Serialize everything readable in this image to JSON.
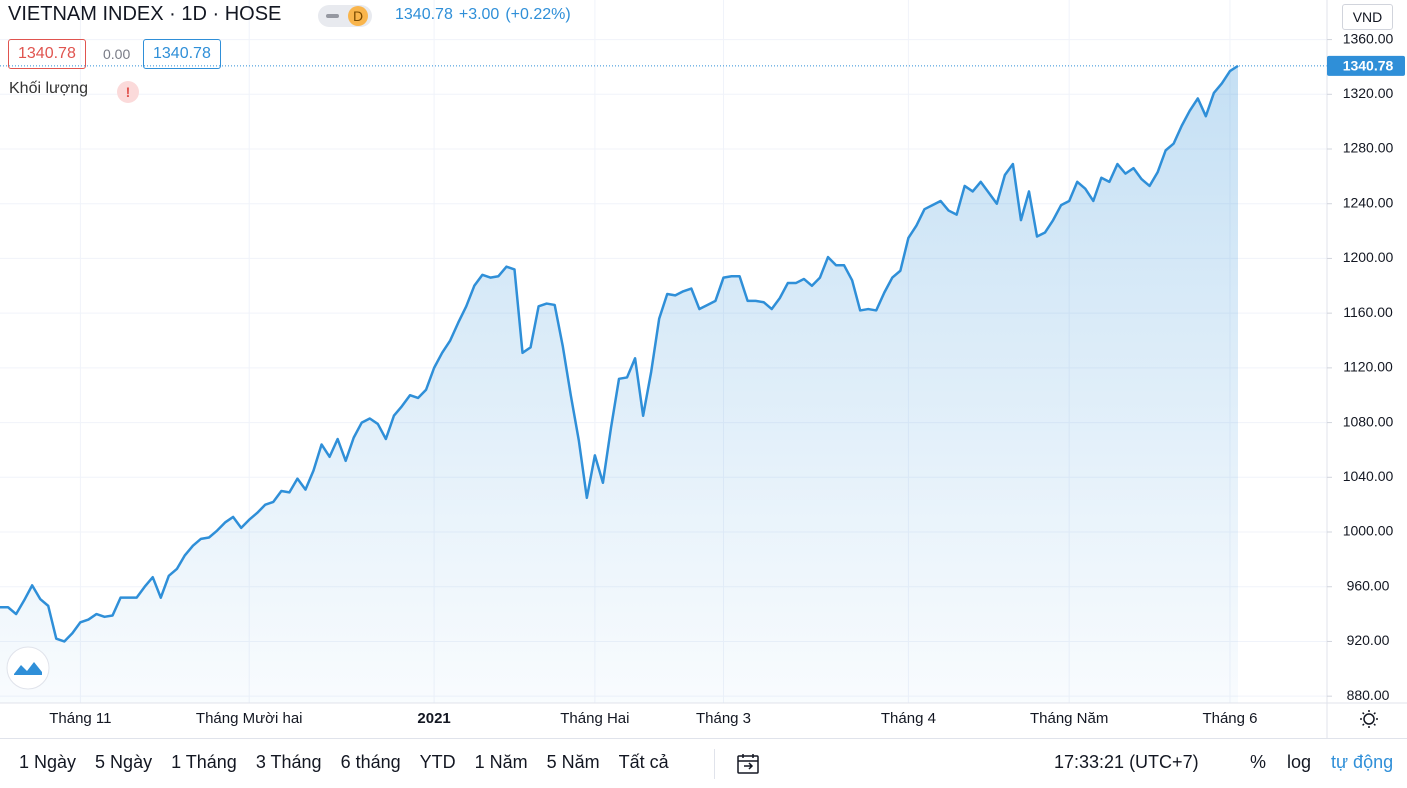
{
  "header": {
    "title": "VIETNAM INDEX · 1D · HOSE",
    "badge": "D",
    "last": "1340.78",
    "change": "+3.00",
    "change_pct": "(+0.22%)",
    "currency": "VND"
  },
  "legend": {
    "open": "1340.78",
    "change": "0.00",
    "close": "1340.78",
    "volume": "Khối lượng",
    "warning": "!"
  },
  "chart_data": {
    "type": "area",
    "color": "#2f8fd8",
    "categories": [
      null,
      null,
      null,
      null,
      null,
      null,
      null,
      null,
      null,
      null,
      "Tháng 11",
      null,
      null,
      null,
      null,
      null,
      null,
      null,
      null,
      null,
      null,
      null,
      null,
      null,
      null,
      null,
      null,
      null,
      null,
      null,
      null,
      "Tháng Mười hai",
      null,
      null,
      null,
      null,
      null,
      null,
      null,
      null,
      null,
      null,
      null,
      null,
      null,
      null,
      null,
      null,
      null,
      null,
      null,
      null,
      null,
      null,
      "2021",
      null,
      null,
      null,
      null,
      null,
      null,
      null,
      null,
      null,
      null,
      null,
      null,
      null,
      null,
      null,
      null,
      null,
      null,
      null,
      "Tháng Hai",
      null,
      null,
      null,
      null,
      null,
      null,
      null,
      null,
      null,
      null,
      null,
      null,
      null,
      null,
      null,
      "Tháng 3",
      null,
      null,
      null,
      null,
      null,
      null,
      null,
      null,
      null,
      null,
      null,
      null,
      null,
      null,
      null,
      null,
      null,
      null,
      null,
      null,
      null,
      null,
      "Tháng 4",
      null,
      null,
      null,
      null,
      null,
      null,
      null,
      null,
      null,
      null,
      null,
      null,
      null,
      null,
      null,
      null,
      null,
      null,
      null,
      "Tháng Năm",
      null,
      null,
      null,
      null,
      null,
      null,
      null,
      null,
      null,
      null,
      null,
      null,
      null,
      null,
      null,
      null,
      null,
      null,
      null,
      "Tháng 6",
      null
    ],
    "values": [
      945,
      945,
      940,
      950,
      961,
      951,
      946,
      922,
      920,
      926,
      934,
      936,
      940,
      938,
      939,
      952,
      952,
      952,
      960,
      967,
      952,
      968,
      973,
      983,
      990,
      995,
      996,
      1001,
      1007,
      1011,
      1003,
      1009,
      1014,
      1020,
      1022,
      1030,
      1029,
      1039,
      1031,
      1045,
      1064,
      1055,
      1068,
      1052,
      1069,
      1080,
      1083,
      1079,
      1068,
      1085,
      1092,
      1100,
      1098,
      1104,
      1120,
      1131,
      1140,
      1153,
      1165,
      1180,
      1188,
      1186,
      1187,
      1194,
      1192,
      1131,
      1135,
      1165,
      1167,
      1166,
      1136,
      1100,
      1067,
      1025,
      1056,
      1036,
      1076,
      1112,
      1113,
      1127,
      1085,
      1117,
      1156,
      1174,
      1173,
      1176,
      1178,
      1163,
      1166,
      1169,
      1186,
      1187,
      1187,
      1169,
      1169,
      1168,
      1163,
      1171,
      1182,
      1182,
      1185,
      1180,
      1186,
      1201,
      1195,
      1195,
      1184,
      1162,
      1163,
      1162,
      1175,
      1186,
      1191,
      1215,
      1224,
      1236,
      1239,
      1242,
      1235,
      1232,
      1253,
      1249,
      1256,
      1248,
      1240,
      1261,
      1269,
      1228,
      1249,
      1216,
      1219,
      1228,
      1239,
      1242,
      1256,
      1251,
      1242,
      1259,
      1256,
      1269,
      1262,
      1266,
      1258,
      1253,
      1263,
      1279,
      1284,
      1297,
      1308,
      1317,
      1304,
      1321,
      1328,
      1337,
      1340.78
    ],
    "ylim": [
      875,
      1367
    ],
    "yticks": [
      {
        "value": 880,
        "label": "880.00"
      },
      {
        "value": 920,
        "label": "920.00"
      },
      {
        "value": 960,
        "label": "960.00"
      },
      {
        "value": 1000,
        "label": "1000.00"
      },
      {
        "value": 1040,
        "label": "1040.00"
      },
      {
        "value": 1080,
        "label": "1080.00"
      },
      {
        "value": 1120,
        "label": "1120.00"
      },
      {
        "value": 1160,
        "label": "1160.00"
      },
      {
        "value": 1200,
        "label": "1200.00"
      },
      {
        "value": 1240,
        "label": "1240.00"
      },
      {
        "value": 1280,
        "label": "1280.00"
      },
      {
        "value": 1320,
        "label": "1320.00"
      },
      {
        "value": 1360,
        "label": "1360.00"
      }
    ],
    "grid": true
  },
  "toolbar": {
    "ranges": [
      "1 Ngày",
      "5 Ngày",
      "1 Tháng",
      "3 Tháng",
      "6 tháng",
      "YTD",
      "1 Năm",
      "5 Năm",
      "Tất cả"
    ],
    "time": "17:33:21 (UTC+7)",
    "percent": "%",
    "log": "log",
    "auto": "tự động"
  }
}
